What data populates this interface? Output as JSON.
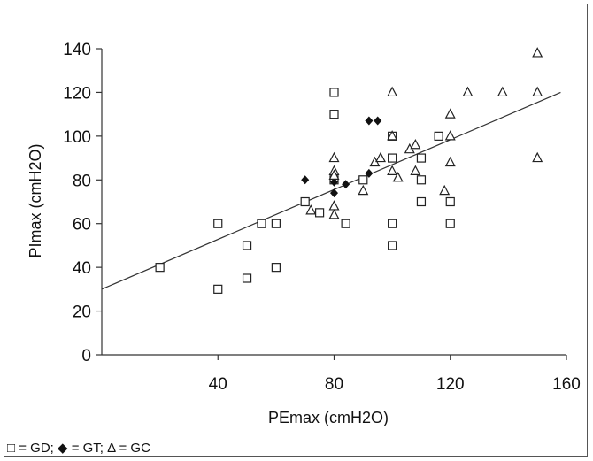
{
  "legend_text": "□ = GD; ◆ = GT; Δ = GC",
  "chart_data": {
    "type": "scatter",
    "xlabel": "PEmax (cmH2O)",
    "ylabel": "PImax (cmH2O)",
    "xlim": [
      0,
      160
    ],
    "ylim": [
      0,
      140
    ],
    "xticks": [
      40,
      80,
      120,
      160
    ],
    "yticks": [
      0,
      20,
      40,
      60,
      80,
      100,
      120,
      140
    ],
    "grid": false,
    "trendline": {
      "x": [
        0,
        158
      ],
      "y": [
        30,
        120
      ]
    },
    "series": [
      {
        "name": "GD",
        "marker": "square",
        "points": [
          [
            20,
            40
          ],
          [
            40,
            60
          ],
          [
            40,
            30
          ],
          [
            50,
            50
          ],
          [
            50,
            35
          ],
          [
            55,
            60
          ],
          [
            60,
            60
          ],
          [
            60,
            40
          ],
          [
            70,
            70
          ],
          [
            75,
            65
          ],
          [
            80,
            120
          ],
          [
            80,
            110
          ],
          [
            80,
            80
          ],
          [
            84,
            60
          ],
          [
            90,
            80
          ],
          [
            100,
            100
          ],
          [
            100,
            90
          ],
          [
            100,
            60
          ],
          [
            100,
            50
          ],
          [
            110,
            90
          ],
          [
            110,
            80
          ],
          [
            110,
            70
          ],
          [
            116,
            100
          ],
          [
            120,
            70
          ],
          [
            120,
            60
          ]
        ]
      },
      {
        "name": "GT",
        "marker": "diamond",
        "points": [
          [
            70,
            80
          ],
          [
            80,
            74
          ],
          [
            80,
            79
          ],
          [
            84,
            78
          ],
          [
            92,
            83
          ],
          [
            92,
            107
          ],
          [
            95,
            107
          ]
        ]
      },
      {
        "name": "GC",
        "marker": "triangle",
        "points": [
          [
            72,
            66
          ],
          [
            80,
            90
          ],
          [
            80,
            84
          ],
          [
            80,
            82
          ],
          [
            80,
            68
          ],
          [
            80,
            64
          ],
          [
            90,
            75
          ],
          [
            94,
            88
          ],
          [
            96,
            90
          ],
          [
            100,
            120
          ],
          [
            100,
            100
          ],
          [
            100,
            84
          ],
          [
            102,
            81
          ],
          [
            106,
            94
          ],
          [
            108,
            96
          ],
          [
            108,
            84
          ],
          [
            118,
            75
          ],
          [
            120,
            110
          ],
          [
            120,
            100
          ],
          [
            120,
            88
          ],
          [
            126,
            120
          ],
          [
            138,
            120
          ],
          [
            150,
            138
          ],
          [
            150,
            120
          ],
          [
            150,
            90
          ]
        ]
      }
    ]
  }
}
